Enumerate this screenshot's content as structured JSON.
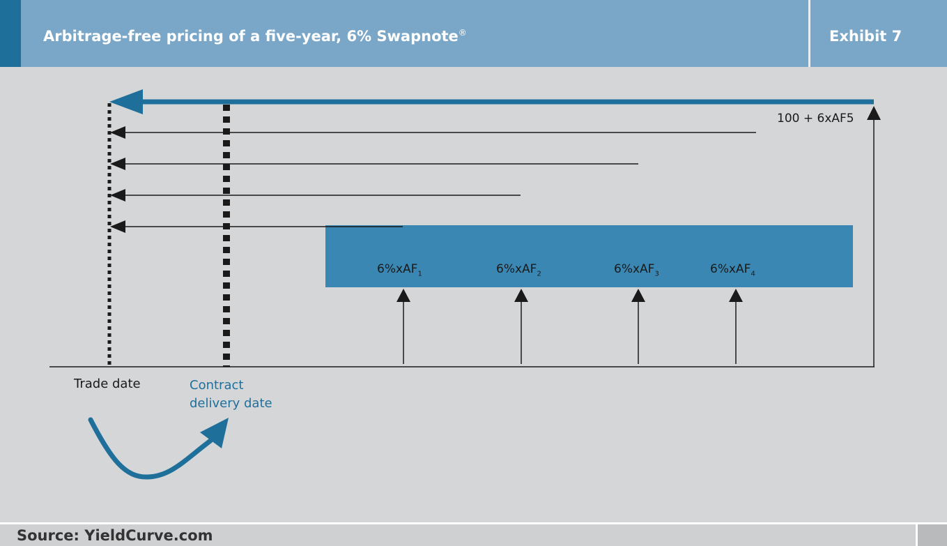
{
  "header": {
    "title": "Arbitrage-free pricing of a five-year, 6% Swapnote",
    "title_mark": "®",
    "exhibit": "Exhibit 7"
  },
  "footer": {
    "source": "Source: YieldCurve.com"
  },
  "labels": {
    "trade_date": "Trade date",
    "contract_delivery_line1": "Contract",
    "contract_delivery_line2": "delivery date",
    "final_payment_prefix": "100 + 6xAF",
    "final_payment_suffix": "5"
  },
  "coupons": [
    {
      "prefix": "6%xAF",
      "sub": "1"
    },
    {
      "prefix": "6%xAF",
      "sub": "2"
    },
    {
      "prefix": "6%xAF",
      "sub": "3"
    },
    {
      "prefix": "6%xAF",
      "sub": "4"
    }
  ],
  "colors": {
    "header_bg": "#7aa7c7",
    "accent": "#1f6f9b",
    "coupon_box": "#3a87b4",
    "background": "#d5d6d8"
  }
}
